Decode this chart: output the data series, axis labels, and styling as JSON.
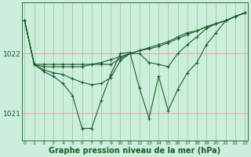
{
  "bg_color": "#cceedd",
  "grid_color_h": "#ff9999",
  "grid_color_v": "#88cc88",
  "line_color": "#1a5c2a",
  "xlabel": "Graphe pression niveau de la mer (hPa)",
  "xlabel_fontsize": 7,
  "yticks": [
    1021,
    1022
  ],
  "xticks": [
    0,
    1,
    2,
    3,
    4,
    5,
    6,
    7,
    8,
    9,
    10,
    11,
    12,
    13,
    14,
    15,
    16,
    17,
    18,
    19,
    20,
    21,
    22,
    23
  ],
  "xlim": [
    -0.3,
    23.3
  ],
  "ylim": [
    1020.55,
    1022.85
  ],
  "series": [
    [
      1022.55,
      1021.82,
      1021.82,
      1021.82,
      1021.82,
      1021.82,
      1021.82,
      1021.82,
      1021.82,
      1021.82,
      1021.92,
      1022.0,
      1022.05,
      1022.1,
      1022.15,
      1022.2,
      1022.28,
      1022.35,
      1022.38,
      1022.45,
      1022.5,
      1022.55,
      1022.62,
      1022.68
    ],
    [
      1022.55,
      1021.82,
      1021.78,
      1021.78,
      1021.78,
      1021.78,
      1021.78,
      1021.82,
      1021.85,
      1021.9,
      1021.95,
      1022.0,
      1022.05,
      1022.08,
      1022.12,
      1022.18,
      1022.25,
      1022.32,
      1022.38,
      1022.45,
      1022.5,
      1022.55,
      1022.62,
      1022.68
    ],
    [
      1022.55,
      1021.82,
      1021.73,
      1021.68,
      1021.65,
      1021.58,
      1021.52,
      1021.48,
      1021.5,
      1021.6,
      1021.88,
      1022.0,
      1022.0,
      1021.85,
      1021.82,
      1021.78,
      1022.0,
      1022.15,
      1022.28,
      1022.42,
      1022.5,
      1022.55,
      1022.62,
      1022.68
    ],
    [
      1022.55,
      1021.82,
      1021.7,
      1021.62,
      1021.5,
      1021.3,
      1020.75,
      1020.75,
      1021.22,
      1021.65,
      1022.0,
      1022.02,
      1021.42,
      1020.92,
      1021.62,
      1021.05,
      1021.4,
      1021.68,
      1021.85,
      1022.15,
      1022.35,
      1022.55,
      1022.62,
      1022.68
    ]
  ]
}
